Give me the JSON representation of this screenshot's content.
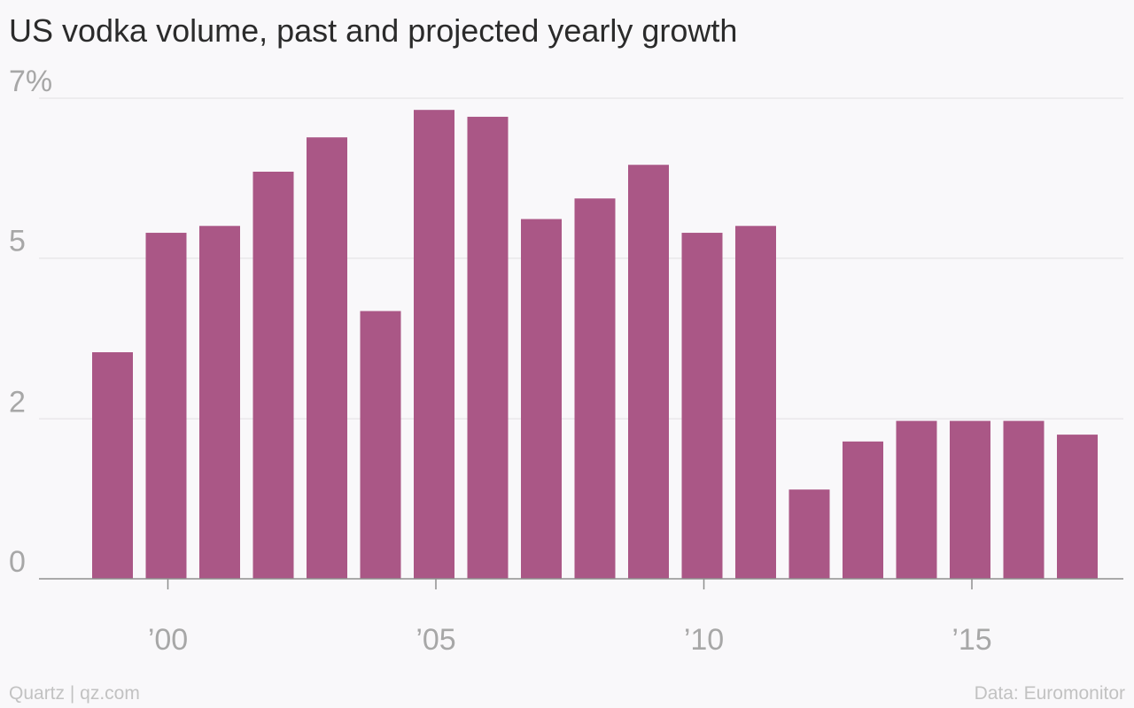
{
  "title": "US vodka volume, past and projected yearly growth",
  "footer": {
    "source_left": "Quartz | qz.com",
    "source_right": "Data: Euromonitor"
  },
  "colors": {
    "bar": "#aa5786",
    "grid": "#e9e7ea",
    "axis": "#8f8f8f",
    "tick_text": "#a7a7a7",
    "background": "#f9f8fa"
  },
  "chart_data": {
    "type": "bar",
    "title": "US vodka volume, past and projected yearly growth",
    "xlabel": "",
    "ylabel": "",
    "x": [
      1999,
      2000,
      2001,
      2002,
      2003,
      2004,
      2005,
      2006,
      2007,
      2008,
      2009,
      2010,
      2011,
      2012,
      2013,
      2014,
      2015,
      2016,
      2017
    ],
    "values": [
      3.3,
      5.04,
      5.14,
      5.93,
      6.43,
      3.9,
      6.83,
      6.73,
      5.24,
      5.54,
      6.03,
      5.04,
      5.14,
      1.3,
      2.0,
      2.3,
      2.3,
      2.3,
      2.1
    ],
    "ylim": [
      0,
      7
    ],
    "yticks": [
      {
        "value": 0,
        "label": "0"
      },
      {
        "value": 2.33,
        "label": "2"
      },
      {
        "value": 4.67,
        "label": "5"
      },
      {
        "value": 7,
        "label": "7%"
      }
    ],
    "xticks": [
      {
        "value": 2000,
        "label": "’00"
      },
      {
        "value": 2005,
        "label": "’05"
      },
      {
        "value": 2010,
        "label": "’10"
      },
      {
        "value": 2015,
        "label": "’15"
      }
    ],
    "grid": true,
    "legend": "none"
  }
}
